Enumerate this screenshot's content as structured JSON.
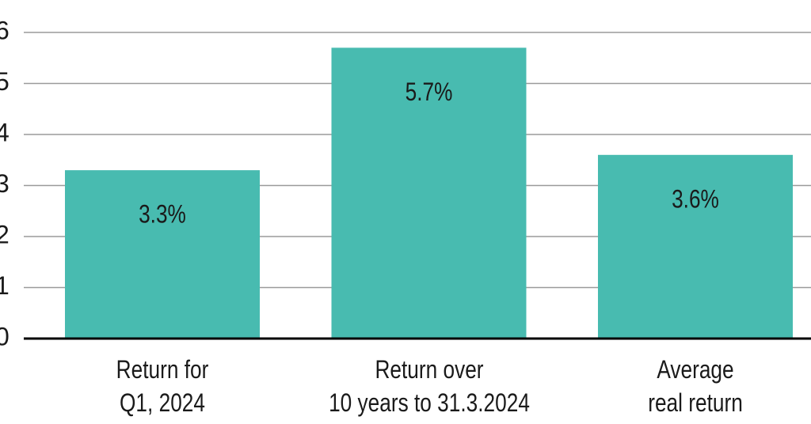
{
  "chart_data": {
    "type": "bar",
    "categories": [
      "Return for\nQ1, 2024",
      "Return over\n10 years to 31.3.2024",
      "Average\nreal return"
    ],
    "values": [
      3.3,
      5.7,
      3.6
    ],
    "value_labels": [
      "3.3%",
      "5.7%",
      "3.6%"
    ],
    "color": "#48bbb0",
    "ylim": [
      0,
      6
    ],
    "yticks": [
      0,
      1,
      2,
      3,
      4,
      5,
      6
    ],
    "grid": true
  }
}
